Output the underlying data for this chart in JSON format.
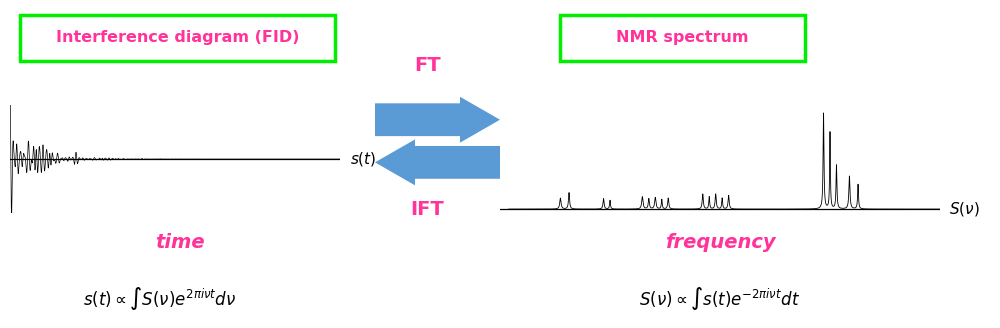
{
  "bg_color": "#ffffff",
  "left_box_label": "Interference diagram (FID)",
  "right_box_label": "NMR spectrum",
  "box_color": "#00ee00",
  "box_text_color": "#ff3399",
  "ft_label": "FT",
  "ift_label": "IFT",
  "arrow_color": "#5b9bd5",
  "arrow_text_color": "#ff3399",
  "time_label": "time",
  "freq_label": "frequency",
  "signal_color": "#000000",
  "spectrum_color": "#000000",
  "fig_width": 10.0,
  "fig_height": 3.28,
  "dpi": 100
}
